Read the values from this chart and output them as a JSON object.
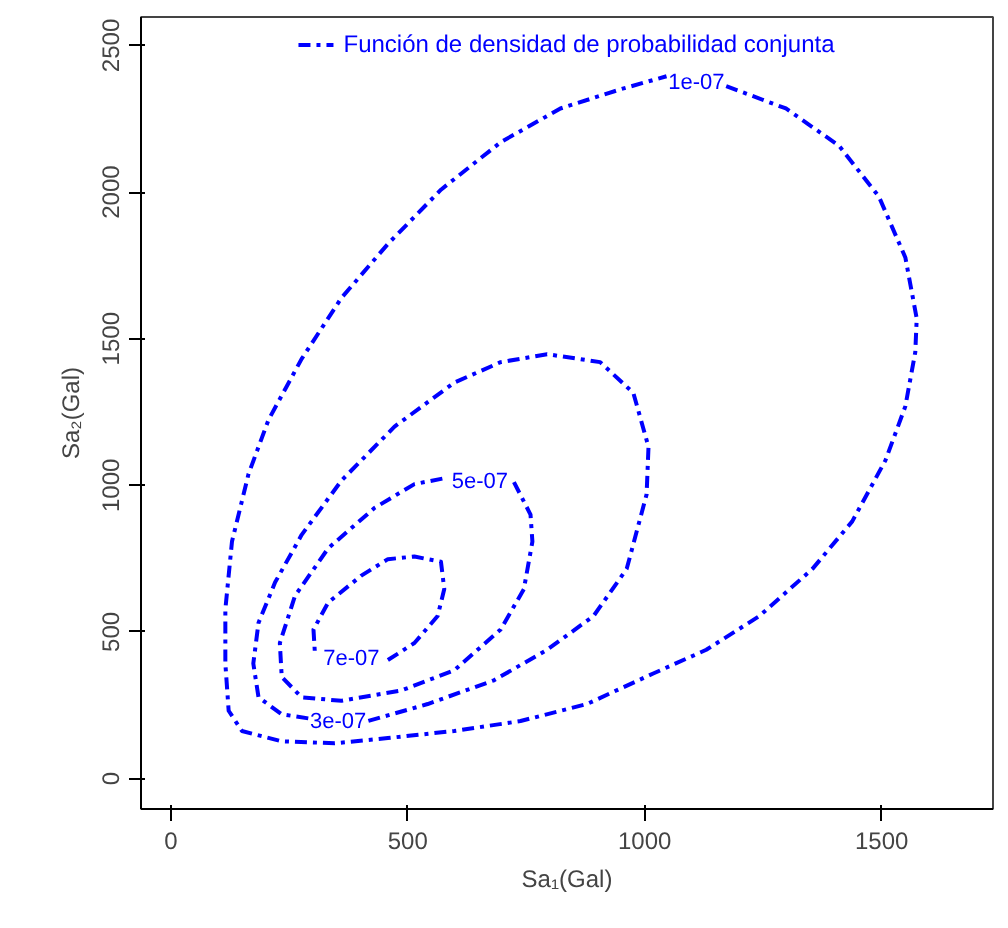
{
  "chart_data": {
    "type": "line",
    "xlabel": "Sa₁(Gal)",
    "ylabel": "Sa₂(Gal)",
    "xlim": [
      -63,
      1735
    ],
    "ylim": [
      -104,
      2597
    ],
    "xticks": [
      0,
      500,
      1000,
      1500
    ],
    "yticks": [
      0,
      500,
      1000,
      1500,
      2000,
      2500
    ],
    "grid": false,
    "legend": "top",
    "line_style": "dashed",
    "marker": "none",
    "series": [
      {
        "name": "Función de densidad de probabilidad conjunta",
        "color": "#0000ff",
        "x": [
          1172,
          1298,
          1410,
          1494,
          1550,
          1574,
          1571,
          1550,
          1508,
          1438,
          1354,
          1242,
          1130,
          1018,
          878,
          738,
          598,
          458,
          346,
          234,
          150,
          122,
          115,
          115,
          129,
          164,
          206,
          276,
          360,
          458,
          570,
          696,
          822,
          948,
          1046
        ],
        "values": [
          2361,
          2285,
          2158,
          1985,
          1777,
          1569,
          1454,
          1269,
          1085,
          877,
          715,
          554,
          439,
          358,
          254,
          196,
          162,
          138,
          120,
          127,
          162,
          231,
          392,
          577,
          808,
          1039,
          1223,
          1431,
          1639,
          1823,
          2008,
          2170,
          2285,
          2350,
          2395
        ]
      },
      {
        "color": "#0000ff",
        "x": [
          290,
          234,
          185,
          174,
          185,
          220,
          276,
          360,
          472,
          598,
          696,
          794,
          906,
          976,
          1008,
          1004,
          962,
          892,
          794,
          682,
          542,
          416
        ],
        "values": [
          205,
          219,
          277,
          392,
          531,
          669,
          831,
          1016,
          1200,
          1350,
          1420,
          1447,
          1420,
          1315,
          1131,
          969,
          715,
          554,
          439,
          335,
          254,
          196
        ]
      },
      {
        "color": "#0000ff",
        "x": [
          724,
          759,
          763,
          745,
          696,
          598,
          486,
          360,
          276,
          234,
          230,
          262,
          332,
          430,
          514,
          580
        ],
        "values": [
          1011,
          900,
          808,
          646,
          508,
          369,
          300,
          265,
          277,
          346,
          462,
          623,
          785,
          923,
          1004,
          1025
        ]
      },
      {
        "color": "#0000ff",
        "x": [
          458,
          514,
          563,
          577,
          570,
          514,
          458,
          402,
          332,
          301,
          304
        ],
        "values": [
          404,
          462,
          554,
          646,
          739,
          757,
          748,
          692,
          600,
          508,
          427
        ]
      }
    ],
    "annotations": [
      "1e-07",
      "3e-07",
      "5e-07",
      "7e-07"
    ]
  }
}
